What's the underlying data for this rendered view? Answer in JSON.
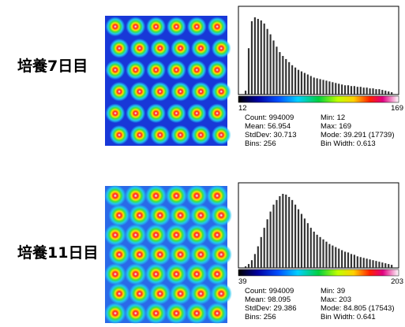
{
  "panels": [
    {
      "label": "培養7日目",
      "histogram": {
        "min_label": "12",
        "max_label": "169",
        "counts": [
          5,
          60,
          95,
          100,
          98,
          96,
          92,
          85,
          78,
          70,
          62,
          55,
          50,
          46,
          42,
          38,
          35,
          32,
          30,
          28,
          26,
          24,
          22,
          21,
          20,
          19,
          18,
          17,
          16,
          15,
          14,
          13,
          12,
          12,
          11,
          11,
          10,
          10,
          9,
          9,
          8,
          8,
          7,
          7,
          6,
          5,
          4,
          3
        ]
      },
      "stats": [
        [
          "Count: 994009",
          "Mean: 56.954",
          "StdDev: 30.713",
          "Bins: 256"
        ],
        [
          "Min: 12",
          "Max: 169",
          "Mode: 39.291 (17739)",
          "Bin Width: 0.613"
        ]
      ]
    },
    {
      "label": "培養11日目",
      "histogram": {
        "min_label": "39",
        "max_label": "203",
        "counts": [
          2,
          5,
          10,
          18,
          28,
          40,
          52,
          63,
          73,
          82,
          88,
          93,
          96,
          95,
          92,
          88,
          82,
          76,
          70,
          64,
          58,
          52,
          47,
          43,
          40,
          37,
          34,
          31,
          29,
          27,
          25,
          23,
          21,
          20,
          18,
          17,
          15,
          14,
          13,
          12,
          11,
          10,
          9,
          8,
          7,
          6,
          5,
          4
        ]
      },
      "stats": [
        [
          "Count: 994009",
          "Mean: 98.095",
          "StdDev: 29.386",
          "Bins: 256"
        ],
        [
          "Min: 39",
          "Max: 203",
          "Mode: 84.805 (17543)",
          "Bin Width: 0.641"
        ]
      ]
    }
  ]
}
